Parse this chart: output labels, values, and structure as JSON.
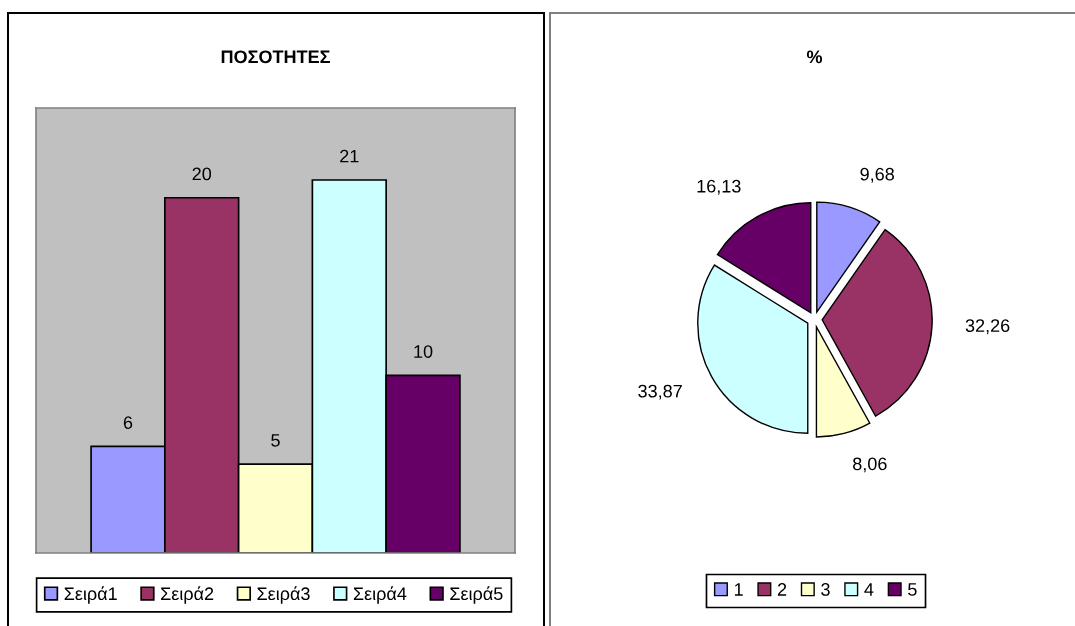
{
  "chart_data": [
    {
      "type": "bar",
      "title": "ΠΟΣΟΤΗΤΕΣ",
      "categories": [
        null
      ],
      "series": [
        {
          "name": "Σειρά1",
          "color": "#9999ff",
          "values": [
            6
          ]
        },
        {
          "name": "Σειρά2",
          "color": "#993366",
          "values": [
            20
          ]
        },
        {
          "name": "Σειρά3",
          "color": "#ffffcc",
          "values": [
            5
          ]
        },
        {
          "name": "Σειρά4",
          "color": "#ccffff",
          "values": [
            21
          ]
        },
        {
          "name": "Σειρά5",
          "color": "#660066",
          "values": [
            10
          ]
        }
      ],
      "data_labels": true,
      "legend": "bottom",
      "tick_labels": false
    },
    {
      "type": "pie",
      "title": "%",
      "categories": [
        "1",
        "2",
        "3",
        "4",
        "5"
      ],
      "values": [
        9.68,
        32.26,
        8.06,
        33.87,
        16.13
      ],
      "colors": [
        "#9999ff",
        "#993366",
        "#ffffcc",
        "#ccffff",
        "#660066"
      ],
      "value_labels": [
        "9,68",
        "32,26",
        "8,06",
        "33,87",
        "16,13"
      ],
      "legend": "bottom"
    }
  ]
}
